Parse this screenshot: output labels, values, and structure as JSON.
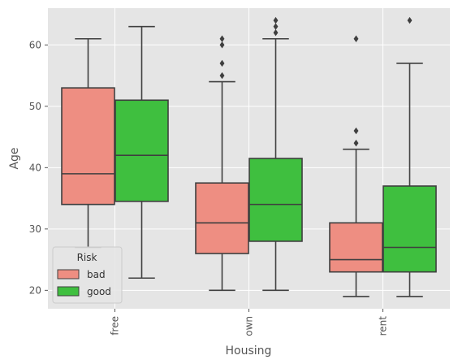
{
  "chart_data": {
    "type": "box",
    "xlabel": "Housing",
    "ylabel": "Age",
    "categories": [
      "free",
      "own",
      "rent"
    ],
    "ylim": [
      17,
      66
    ],
    "yticks": [
      20,
      30,
      40,
      50,
      60
    ],
    "grid": true,
    "legend": {
      "title": "Risk",
      "placement": "lower-left",
      "entries": [
        "bad",
        "good"
      ]
    },
    "colors": {
      "background": "#E5E5E5",
      "grid": "#ffffff",
      "edge": "#3f3f3f",
      "bad": "#EE8E82",
      "good": "#3FBF3F"
    },
    "series": [
      {
        "name": "bad",
        "color": "#EE8E82",
        "boxes": [
          {
            "category": "free",
            "whislo": 27,
            "q1": 34,
            "median": 39,
            "q3": 53,
            "whishi": 61,
            "fliers": []
          },
          {
            "category": "own",
            "whislo": 20,
            "q1": 26,
            "median": 31,
            "q3": 37.5,
            "whishi": 54,
            "fliers": [
              55,
              57,
              60,
              61
            ]
          },
          {
            "category": "rent",
            "whislo": 19,
            "q1": 23,
            "median": 25,
            "q3": 31,
            "whishi": 43,
            "fliers": [
              44,
              46,
              61
            ]
          }
        ]
      },
      {
        "name": "good",
        "color": "#3FBF3F",
        "boxes": [
          {
            "category": "free",
            "whislo": 22,
            "q1": 34.5,
            "median": 42,
            "q3": 51,
            "whishi": 63,
            "fliers": []
          },
          {
            "category": "own",
            "whislo": 20,
            "q1": 28,
            "median": 34,
            "q3": 41.5,
            "whishi": 61,
            "fliers": [
              62,
              63,
              64
            ]
          },
          {
            "category": "rent",
            "whislo": 19,
            "q1": 23,
            "median": 27,
            "q3": 37,
            "whishi": 57,
            "fliers": [
              64
            ]
          }
        ]
      }
    ]
  }
}
